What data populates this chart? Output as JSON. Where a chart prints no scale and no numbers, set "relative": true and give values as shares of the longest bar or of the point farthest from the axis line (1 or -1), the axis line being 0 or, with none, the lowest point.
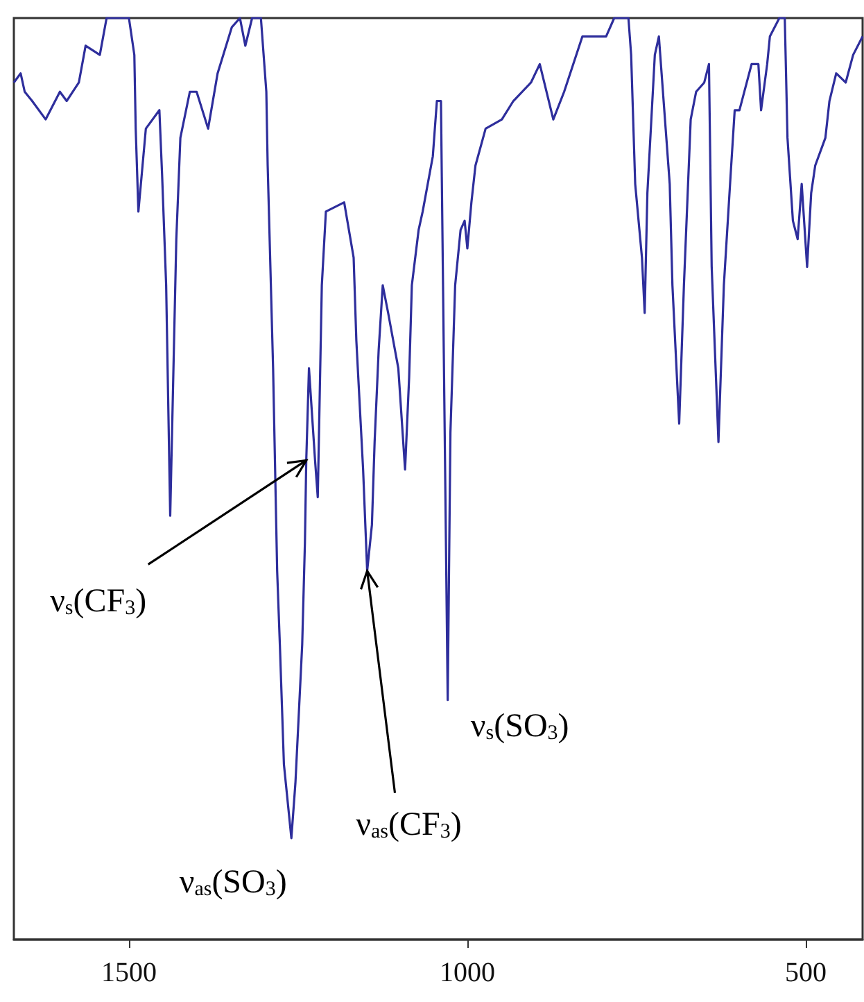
{
  "chart_data": {
    "type": "line",
    "relative": true,
    "color": "#2e2e9c",
    "x": [
      1670,
      1660,
      1654,
      1643,
      1623,
      1602,
      1592,
      1574,
      1564,
      1543,
      1533,
      1500,
      1492,
      1490,
      1486,
      1475,
      1455,
      1451,
      1445,
      1439,
      1430,
      1424,
      1410,
      1400,
      1383,
      1369,
      1348,
      1336,
      1328,
      1318,
      1305,
      1297,
      1295,
      1287,
      1281,
      1277,
      1271,
      1260,
      1254,
      1244,
      1240,
      1238,
      1234,
      1225,
      1221,
      1215,
      1209,
      1182,
      1168,
      1164,
      1154,
      1148,
      1141,
      1137,
      1131,
      1125,
      1117,
      1102,
      1092,
      1086,
      1082,
      1072,
      1066,
      1051,
      1045,
      1039,
      1035,
      1029,
      1025,
      1018,
      1010,
      1004,
      1000,
      994,
      988,
      973,
      949,
      932,
      906,
      893,
      873,
      857,
      830,
      809,
      795,
      783,
      762,
      758,
      752,
      742,
      738,
      734,
      723,
      717,
      707,
      701,
      697,
      691,
      687,
      680,
      670,
      662,
      650,
      643,
      639,
      629,
      621,
      611,
      605,
      598,
      580,
      570,
      566,
      557,
      553,
      539,
      531,
      527,
      519,
      512,
      506,
      498,
      492,
      486,
      471,
      465,
      455,
      441,
      430,
      416
    ],
    "values": [
      0.93,
      0.94,
      0.92,
      0.91,
      0.89,
      0.92,
      0.91,
      0.93,
      0.97,
      0.96,
      1.0,
      1.0,
      0.96,
      0.88,
      0.79,
      0.88,
      0.9,
      0.83,
      0.71,
      0.46,
      0.76,
      0.87,
      0.92,
      0.92,
      0.88,
      0.94,
      0.99,
      1.0,
      0.97,
      1.0,
      1.0,
      0.92,
      0.84,
      0.62,
      0.4,
      0.32,
      0.19,
      0.11,
      0.17,
      0.32,
      0.43,
      0.52,
      0.62,
      0.52,
      0.48,
      0.71,
      0.79,
      0.8,
      0.74,
      0.65,
      0.51,
      0.4,
      0.45,
      0.54,
      0.64,
      0.71,
      0.68,
      0.62,
      0.51,
      0.61,
      0.71,
      0.77,
      0.79,
      0.85,
      0.91,
      0.91,
      0.65,
      0.26,
      0.55,
      0.71,
      0.77,
      0.78,
      0.75,
      0.8,
      0.84,
      0.88,
      0.89,
      0.91,
      0.93,
      0.95,
      0.89,
      0.92,
      0.98,
      0.98,
      0.98,
      1.0,
      1.0,
      0.96,
      0.82,
      0.74,
      0.68,
      0.81,
      0.96,
      0.98,
      0.88,
      0.82,
      0.71,
      0.62,
      0.56,
      0.71,
      0.89,
      0.92,
      0.93,
      0.95,
      0.73,
      0.54,
      0.71,
      0.83,
      0.9,
      0.9,
      0.95,
      0.95,
      0.9,
      0.95,
      0.98,
      1.0,
      1.0,
      0.87,
      0.78,
      0.76,
      0.82,
      0.73,
      0.81,
      0.84,
      0.87,
      0.91,
      0.94,
      0.93,
      0.96,
      0.98
    ],
    "xlim": [
      1670,
      416
    ],
    "xticks": [
      1500,
      1000,
      500
    ],
    "grid": false,
    "marker": "none",
    "annotations": [
      {
        "text": "ν$_{s}$(CF$_{3}$)",
        "x": 1238,
        "y": 0.52
      },
      {
        "text": "ν$_{as}$(CF$_{3}$)",
        "x": 1148,
        "y": 0.4
      },
      {
        "text": "ν$_{as}$(SO$_{3}$)",
        "x": 1260,
        "y": 0.11
      },
      {
        "text": "ν$_{s}$(SO$_{3}$)",
        "x": 1029,
        "y": 0.26
      }
    ]
  }
}
